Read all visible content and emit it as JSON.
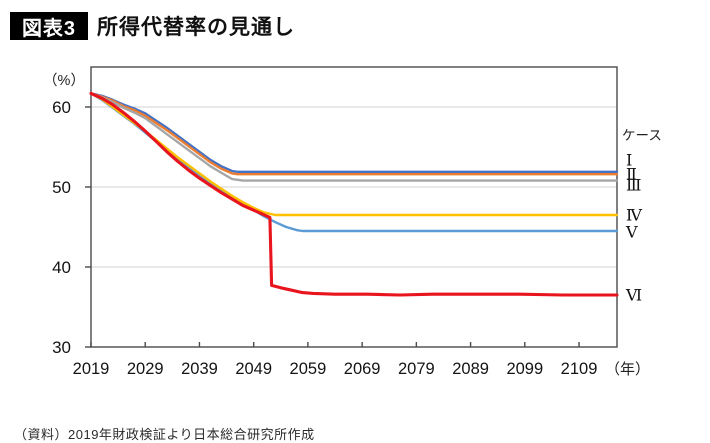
{
  "header": {
    "badge": "図表3",
    "title": "所得代替率の見通し"
  },
  "footer": {
    "source": "（資料）2019年財政検証より日本総合研究所作成"
  },
  "chart_data": {
    "type": "line",
    "title": "所得代替率の見通し",
    "y_unit_label": "（%）",
    "x_unit_label": "（年）",
    "legend_title": "ケース",
    "legend_position": "right",
    "xlim": [
      2019,
      2116
    ],
    "ylim": [
      30,
      65
    ],
    "x_ticks": [
      2019,
      2029,
      2039,
      2049,
      2059,
      2069,
      2079,
      2089,
      2099,
      2109
    ],
    "y_ticks": [
      30,
      40,
      50,
      60
    ],
    "grid_y": [
      40,
      50,
      60
    ],
    "axis_color": "#4a4a4a",
    "grid_color": "#d2d2d2",
    "series": [
      {
        "name": "case-1",
        "label": "Ⅰ",
        "color": "#4472C4",
        "width": 2.4,
        "final_value": 51.9,
        "points": [
          [
            2019,
            61.7
          ],
          [
            2021,
            61.4
          ],
          [
            2023,
            60.9
          ],
          [
            2025,
            60.3
          ],
          [
            2027,
            59.8
          ],
          [
            2029,
            59.2
          ],
          [
            2031,
            58.3
          ],
          [
            2033,
            57.4
          ],
          [
            2035,
            56.4
          ],
          [
            2037,
            55.4
          ],
          [
            2039,
            54.4
          ],
          [
            2041,
            53.4
          ],
          [
            2043,
            52.6
          ],
          [
            2045,
            52.0
          ],
          [
            2046,
            51.9
          ],
          [
            2116,
            51.9
          ]
        ]
      },
      {
        "name": "case-2",
        "label": "Ⅱ",
        "color": "#ED7D31",
        "width": 2.4,
        "final_value": 51.6,
        "points": [
          [
            2019,
            61.7
          ],
          [
            2021,
            61.3
          ],
          [
            2023,
            60.8
          ],
          [
            2025,
            60.1
          ],
          [
            2027,
            59.6
          ],
          [
            2029,
            58.9
          ],
          [
            2031,
            58.0
          ],
          [
            2033,
            57.1
          ],
          [
            2035,
            56.1
          ],
          [
            2037,
            55.1
          ],
          [
            2039,
            54.1
          ],
          [
            2041,
            53.1
          ],
          [
            2043,
            52.3
          ],
          [
            2045,
            51.7
          ],
          [
            2046,
            51.6
          ],
          [
            2116,
            51.6
          ]
        ]
      },
      {
        "name": "case-3",
        "label": "Ⅲ",
        "color": "#A6A6A6",
        "width": 2.4,
        "final_value": 50.8,
        "points": [
          [
            2019,
            61.7
          ],
          [
            2021,
            61.2
          ],
          [
            2023,
            60.6
          ],
          [
            2025,
            59.9
          ],
          [
            2027,
            59.3
          ],
          [
            2029,
            58.6
          ],
          [
            2031,
            57.6
          ],
          [
            2033,
            56.6
          ],
          [
            2035,
            55.6
          ],
          [
            2037,
            54.6
          ],
          [
            2039,
            53.6
          ],
          [
            2041,
            52.6
          ],
          [
            2043,
            51.8
          ],
          [
            2045,
            51.0
          ],
          [
            2047,
            50.8
          ],
          [
            2116,
            50.8
          ]
        ]
      },
      {
        "name": "case-5",
        "label": "Ⅴ",
        "color": "#5B9BD5",
        "width": 2.4,
        "final_value": 44.5,
        "points": [
          [
            2019,
            61.7
          ],
          [
            2021,
            60.9
          ],
          [
            2023,
            59.9
          ],
          [
            2025,
            58.9
          ],
          [
            2027,
            57.9
          ],
          [
            2029,
            56.8
          ],
          [
            2031,
            55.7
          ],
          [
            2033,
            54.6
          ],
          [
            2035,
            53.5
          ],
          [
            2037,
            52.5
          ],
          [
            2039,
            51.5
          ],
          [
            2041,
            50.5
          ],
          [
            2043,
            49.6
          ],
          [
            2045,
            48.7
          ],
          [
            2047,
            47.8
          ],
          [
            2049,
            47.1
          ],
          [
            2051,
            46.3
          ],
          [
            2053,
            45.6
          ],
          [
            2055,
            45.0
          ],
          [
            2057,
            44.6
          ],
          [
            2058,
            44.5
          ],
          [
            2116,
            44.5
          ]
        ]
      },
      {
        "name": "case-4",
        "label": "Ⅳ",
        "color": "#FFC000",
        "width": 2.4,
        "final_value": 46.5,
        "points": [
          [
            2019,
            61.7
          ],
          [
            2021,
            61.0
          ],
          [
            2023,
            60.0
          ],
          [
            2025,
            59.0
          ],
          [
            2027,
            58.0
          ],
          [
            2029,
            57.0
          ],
          [
            2031,
            55.9
          ],
          [
            2033,
            54.8
          ],
          [
            2035,
            53.7
          ],
          [
            2037,
            52.7
          ],
          [
            2039,
            51.7
          ],
          [
            2041,
            50.7
          ],
          [
            2043,
            49.8
          ],
          [
            2045,
            48.9
          ],
          [
            2047,
            48.1
          ],
          [
            2049,
            47.4
          ],
          [
            2051,
            46.8
          ],
          [
            2053,
            46.5
          ],
          [
            2116,
            46.5
          ]
        ]
      },
      {
        "name": "case-6",
        "label": "Ⅵ",
        "color": "#E8151E",
        "width": 3.1,
        "final_value": 36.5,
        "points": [
          [
            2019,
            61.7
          ],
          [
            2021,
            61.1
          ],
          [
            2023,
            60.3
          ],
          [
            2025,
            59.3
          ],
          [
            2027,
            58.2
          ],
          [
            2029,
            57.0
          ],
          [
            2031,
            55.7
          ],
          [
            2033,
            54.4
          ],
          [
            2035,
            53.2
          ],
          [
            2037,
            52.1
          ],
          [
            2039,
            51.1
          ],
          [
            2041,
            50.2
          ],
          [
            2043,
            49.3
          ],
          [
            2045,
            48.5
          ],
          [
            2047,
            47.7
          ],
          [
            2049,
            47.1
          ],
          [
            2051,
            46.5
          ],
          [
            2052,
            46.2
          ],
          [
            2052.3,
            37.7
          ],
          [
            2054,
            37.4
          ],
          [
            2056,
            37.1
          ],
          [
            2058,
            36.8
          ],
          [
            2060,
            36.7
          ],
          [
            2064,
            36.6
          ],
          [
            2070,
            36.6
          ],
          [
            2076,
            36.5
          ],
          [
            2082,
            36.6
          ],
          [
            2090,
            36.6
          ],
          [
            2098,
            36.6
          ],
          [
            2106,
            36.5
          ],
          [
            2116,
            36.5
          ]
        ]
      }
    ]
  }
}
